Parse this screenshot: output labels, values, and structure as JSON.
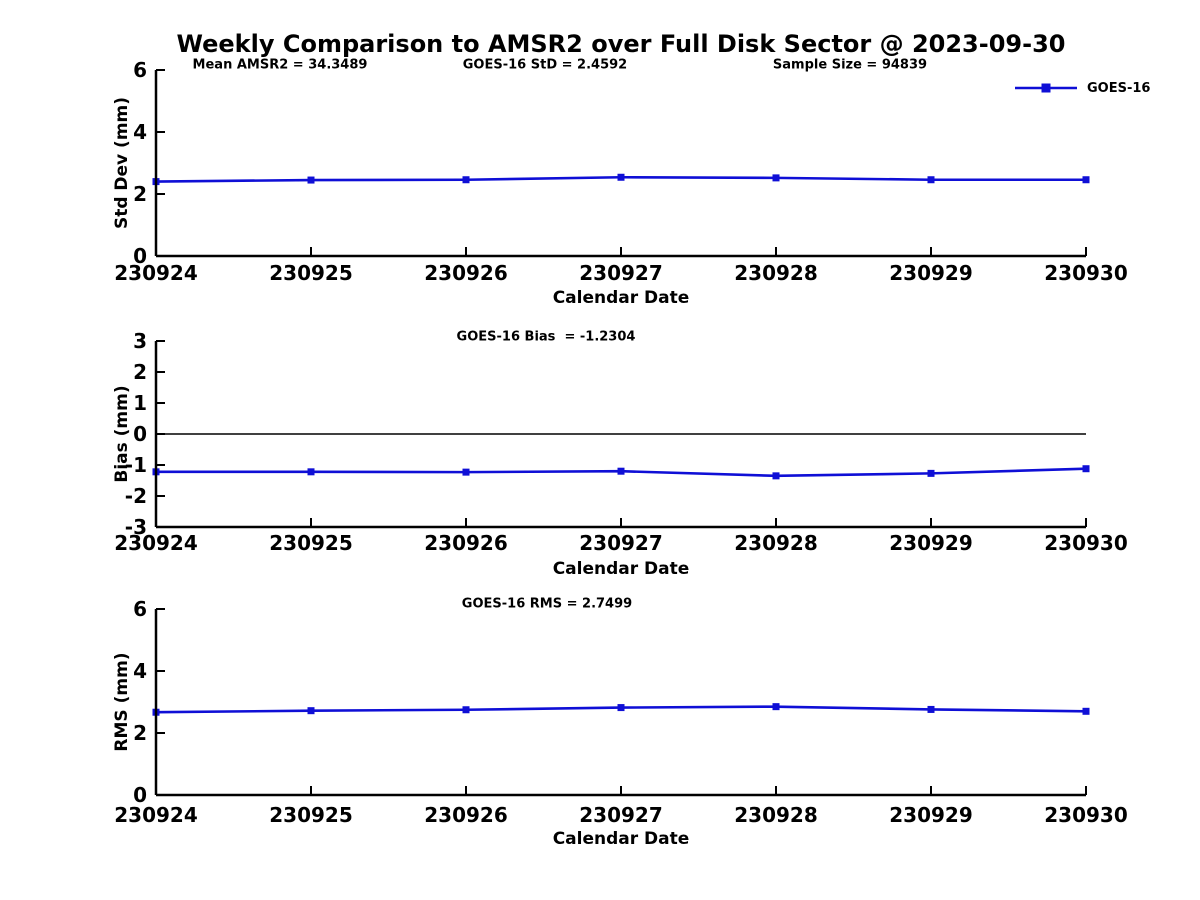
{
  "title": "Weekly Comparison to AMSR2 over Full Disk Sector @ 2023-09-30",
  "legend": {
    "label": "GOES-16"
  },
  "colors": {
    "line": "#0f0fd6",
    "axis": "#000000",
    "background": "#ffffff",
    "text": "#000000"
  },
  "chart_data": [
    {
      "type": "line",
      "panel": "std-dev",
      "annotations": [
        "Mean AMSR2 = 34.3489",
        "GOES-16 StD = 2.4592",
        "Sample Size = 94839"
      ],
      "x": [
        "230924",
        "230925",
        "230926",
        "230927",
        "230928",
        "230929",
        "230930"
      ],
      "xlabel": "Calendar Date",
      "ylabel": "Std Dev (mm)",
      "ylim": [
        0,
        6
      ],
      "yticks": [
        0,
        2,
        4,
        6
      ],
      "grid": false,
      "zero_line": false,
      "legend_entries": [
        "GOES-16"
      ],
      "legend_position": "top-right",
      "series": [
        {
          "name": "GOES-16",
          "values": [
            2.4,
            2.45,
            2.46,
            2.54,
            2.52,
            2.46,
            2.46
          ]
        }
      ]
    },
    {
      "type": "line",
      "panel": "bias",
      "annotations": [
        "GOES-16 Bias  = -1.2304"
      ],
      "x": [
        "230924",
        "230925",
        "230926",
        "230927",
        "230928",
        "230929",
        "230930"
      ],
      "xlabel": "Calendar Date",
      "ylabel": "Bias (mm)",
      "ylim": [
        -3,
        3
      ],
      "yticks": [
        3,
        2,
        1,
        0,
        -1,
        -2,
        -3
      ],
      "grid": false,
      "zero_line": true,
      "series": [
        {
          "name": "GOES-16",
          "values": [
            -1.22,
            -1.22,
            -1.23,
            -1.2,
            -1.35,
            -1.27,
            -1.12
          ]
        }
      ]
    },
    {
      "type": "line",
      "panel": "rms",
      "annotations": [
        "GOES-16 RMS = 2.7499"
      ],
      "x": [
        "230924",
        "230925",
        "230926",
        "230927",
        "230928",
        "230929",
        "230930"
      ],
      "xlabel": "Calendar Date",
      "ylabel": "RMS (mm)",
      "ylim": [
        0,
        6
      ],
      "yticks": [
        0,
        2,
        4,
        6
      ],
      "grid": false,
      "zero_line": false,
      "series": [
        {
          "name": "GOES-16",
          "values": [
            2.67,
            2.72,
            2.75,
            2.82,
            2.85,
            2.76,
            2.7
          ]
        }
      ]
    }
  ]
}
